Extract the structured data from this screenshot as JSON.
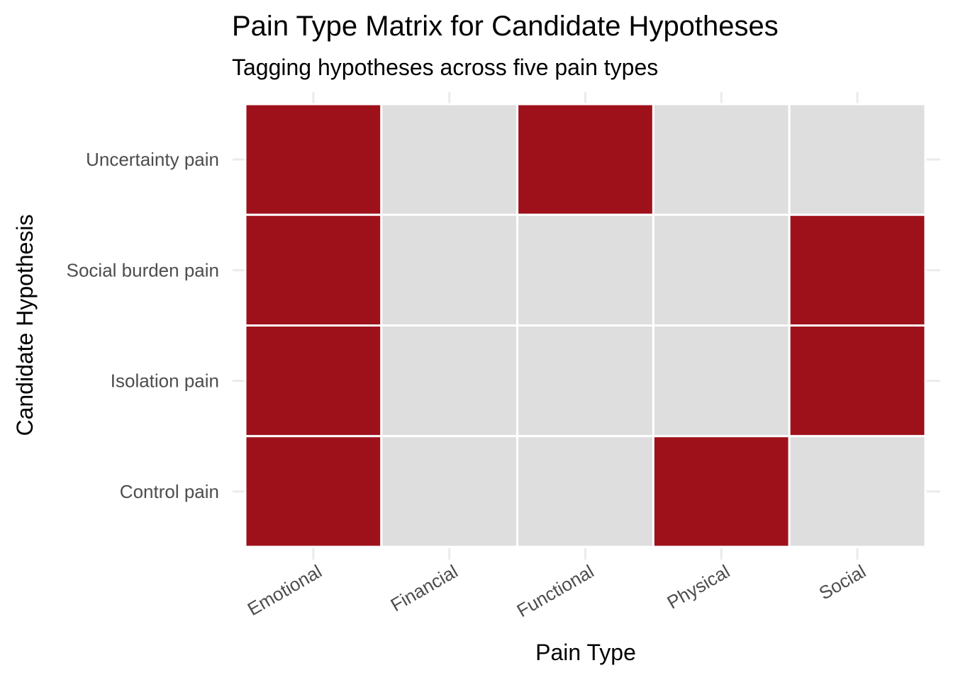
{
  "chart_data": {
    "type": "heatmap",
    "title": "Pain Type Matrix for Candidate Hypotheses",
    "subtitle": "Tagging hypotheses across five pain types",
    "xlabel": "Pain Type",
    "ylabel": "Candidate Hypothesis",
    "x_categories": [
      "Emotional",
      "Financial",
      "Functional",
      "Physical",
      "Social"
    ],
    "y_categories": [
      "Uncertainty pain",
      "Social burden pain",
      "Isolation pain",
      "Control pain"
    ],
    "values": [
      [
        1,
        0,
        1,
        0,
        0
      ],
      [
        1,
        0,
        0,
        0,
        1
      ],
      [
        1,
        0,
        0,
        0,
        1
      ],
      [
        1,
        0,
        0,
        1,
        0
      ]
    ],
    "colors": {
      "tagged": "#9e111b",
      "untagged": "#dedede",
      "cell_border": "#ffffff"
    },
    "grid": true,
    "legend": "none"
  }
}
